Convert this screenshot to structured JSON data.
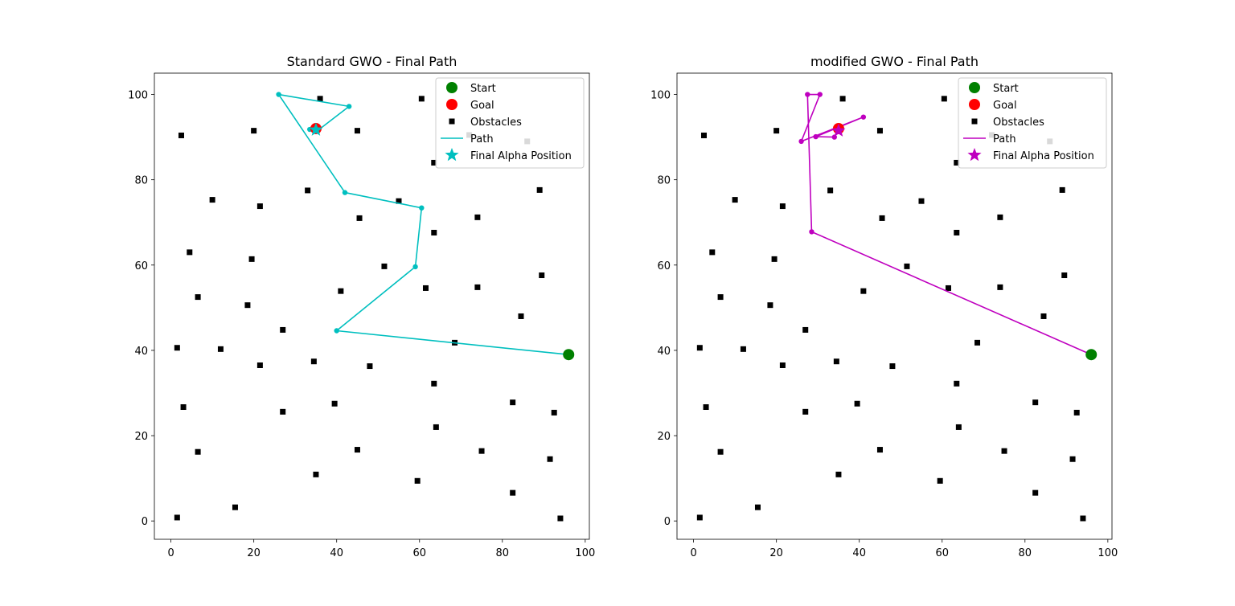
{
  "chart_data": [
    {
      "type": "scatter",
      "title": "Standard GWO - Final Path",
      "xlim": [
        -4,
        101
      ],
      "ylim": [
        -4.3,
        105
      ],
      "xticks": [
        0,
        20,
        40,
        60,
        80,
        100
      ],
      "yticks": [
        0,
        20,
        40,
        60,
        80,
        100
      ],
      "grid": false,
      "legend_position": "upper right",
      "legend": [
        "Start",
        "Goal",
        "Obstacles",
        "Path",
        "Final Alpha Position"
      ],
      "start": [
        96,
        39
      ],
      "goal": [
        35,
        92
      ],
      "final_alpha_position": [
        35,
        91.7
      ],
      "path_color": "#00bfbf",
      "path": [
        [
          96,
          39
        ],
        [
          40,
          44.6
        ],
        [
          59,
          59.6
        ],
        [
          60.5,
          73.4
        ],
        [
          42,
          77
        ],
        [
          26,
          100
        ],
        [
          43,
          97.2
        ],
        [
          35.5,
          91.6
        ],
        [
          33.5,
          91.8
        ],
        [
          35,
          92
        ]
      ]
    },
    {
      "type": "scatter",
      "title": "modified GWO - Final Path",
      "xlim": [
        -4,
        101
      ],
      "ylim": [
        -4.3,
        105
      ],
      "xticks": [
        0,
        20,
        40,
        60,
        80,
        100
      ],
      "yticks": [
        0,
        20,
        40,
        60,
        80,
        100
      ],
      "grid": false,
      "legend_position": "upper right",
      "legend": [
        "Start",
        "Goal",
        "Obstacles",
        "Path",
        "Final Alpha Position"
      ],
      "start": [
        96,
        39
      ],
      "goal": [
        35,
        92
      ],
      "final_alpha_position": [
        35,
        91.5
      ],
      "path_color": "#bf00bf",
      "path": [
        [
          96,
          39
        ],
        [
          28.5,
          67.8
        ],
        [
          27.5,
          100
        ],
        [
          30.5,
          100
        ],
        [
          26,
          89
        ],
        [
          41,
          94.7
        ],
        [
          29.5,
          90.1
        ],
        [
          34,
          90
        ],
        [
          35,
          92
        ]
      ]
    }
  ],
  "obstacles": [
    [
      36,
      99
    ],
    [
      60.5,
      99
    ],
    [
      2.5,
      90.4
    ],
    [
      20,
      91.5
    ],
    [
      45,
      91.5
    ],
    [
      72,
      90.5
    ],
    [
      86,
      89
    ],
    [
      63.5,
      84
    ],
    [
      33,
      77.5
    ],
    [
      89,
      77.6
    ],
    [
      10,
      75.3
    ],
    [
      21.5,
      73.8
    ],
    [
      55,
      75
    ],
    [
      45.5,
      71
    ],
    [
      74,
      71.2
    ],
    [
      63.5,
      67.6
    ],
    [
      4.5,
      63
    ],
    [
      19.5,
      61.4
    ],
    [
      51.5,
      59.7
    ],
    [
      89.5,
      57.6
    ],
    [
      6.5,
      52.5
    ],
    [
      41,
      53.9
    ],
    [
      61.5,
      54.6
    ],
    [
      74,
      54.8
    ],
    [
      18.5,
      50.6
    ],
    [
      84.5,
      48
    ],
    [
      27,
      44.8
    ],
    [
      68.5,
      41.8
    ],
    [
      1.5,
      40.6
    ],
    [
      12,
      40.3
    ],
    [
      34.5,
      37.4
    ],
    [
      21.5,
      36.5
    ],
    [
      48,
      36.3
    ],
    [
      63.5,
      32.2
    ],
    [
      3,
      26.7
    ],
    [
      39.5,
      27.5
    ],
    [
      82.5,
      27.8
    ],
    [
      27,
      25.6
    ],
    [
      92.5,
      25.4
    ],
    [
      64,
      22
    ],
    [
      6.5,
      16.2
    ],
    [
      45,
      16.7
    ],
    [
      75,
      16.4
    ],
    [
      91.5,
      14.5
    ],
    [
      35,
      10.9
    ],
    [
      59.5,
      9.4
    ],
    [
      82.5,
      6.6
    ],
    [
      15.5,
      3.2
    ],
    [
      1.5,
      0.8
    ],
    [
      94,
      0.6
    ]
  ],
  "colors": {
    "start": "#008000",
    "goal": "#ff0000",
    "obstacle": "#000000"
  }
}
